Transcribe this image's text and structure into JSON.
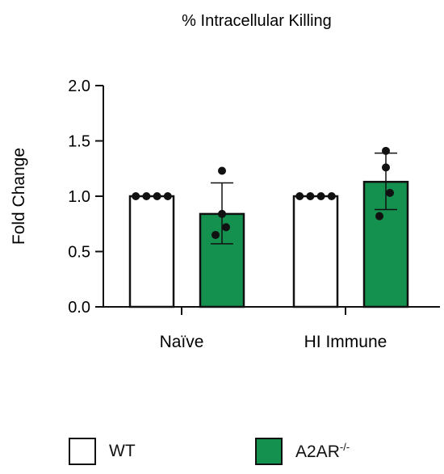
{
  "chart_data": {
    "type": "bar",
    "title": "% Intracellular Killing",
    "ylabel": "Fold Change",
    "xlabel": "",
    "ylim": [
      0,
      2.0
    ],
    "yticks": [
      "0.0",
      "0.5",
      "1.0",
      "1.5",
      "2.0"
    ],
    "categories": [
      "Naïve",
      "HI Immune"
    ],
    "series": [
      {
        "name": "WT",
        "color": "#ffffff",
        "values": [
          1.0,
          1.0
        ],
        "points": [
          [
            1.0,
            1.0,
            1.0,
            1.0
          ],
          [
            1.0,
            1.0,
            1.0,
            1.0
          ]
        ]
      },
      {
        "name": "A2AR",
        "name_superscript": "-/-",
        "color": "#14904f",
        "values": [
          0.84,
          1.13
        ],
        "error": [
          [
            0.57,
            1.12
          ],
          [
            0.88,
            1.39
          ]
        ],
        "points": [
          [
            1.23,
            0.84,
            0.72,
            0.65
          ],
          [
            1.41,
            1.26,
            1.03,
            0.82
          ]
        ]
      }
    ],
    "grid": false,
    "legend_position": "bottom"
  }
}
